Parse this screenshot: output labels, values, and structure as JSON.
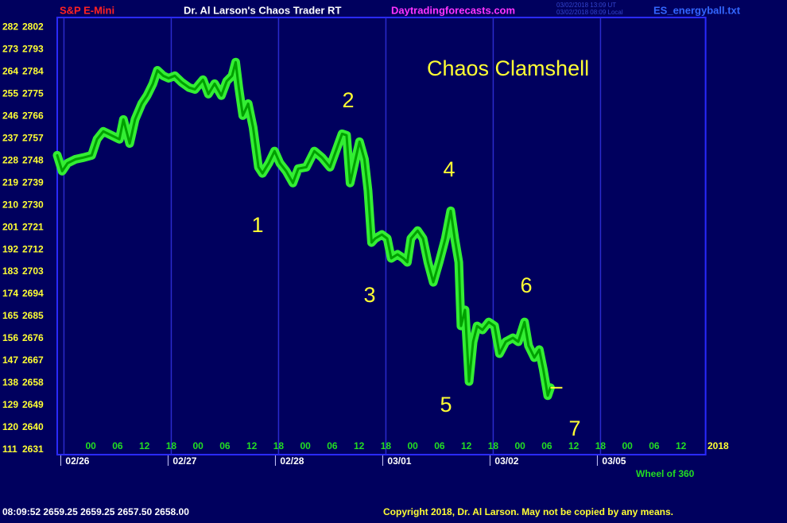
{
  "header": {
    "symbol": "S&P E-Mini",
    "title": "Dr. Al Larson's Chaos Trader RT",
    "site": "Daytradingforecasts.com",
    "timestamp_ut": "03/02/2018 13:09 UT",
    "timestamp_local": "03/02/2018 08:09 Local",
    "file": "ES_energyball.txt"
  },
  "chart_data": {
    "type": "line",
    "annotation_title": "Chaos Clamshell",
    "annotations": [
      "1",
      "2",
      "3",
      "4",
      "5",
      "6",
      "7"
    ],
    "x": [
      -7.5,
      -6.4,
      -5.2,
      -3.4,
      -1.6,
      0.2,
      1.4,
      2.8,
      4.6,
      6.4,
      7.3,
      8.7,
      9.9,
      11.4,
      12.6,
      13.9,
      14.9,
      16.2,
      17.4,
      18.8,
      20.3,
      22.0,
      23.3,
      25.1,
      26.3,
      27.7,
      29.2,
      30.4,
      31.6,
      32.4,
      33.1,
      34.0,
      35.2,
      36.3,
      37.5,
      38.4,
      39.8,
      41.1,
      42.3,
      43.7,
      45.2,
      46.4,
      48.2,
      50.0,
      51.7,
      53.5,
      54.8,
      56.2,
      57.2,
      58.0,
      59.2,
      60.1,
      61.2,
      62.0,
      62.8,
      63.6,
      65.1,
      66.3,
      67.2,
      68.6,
      69.9,
      70.8,
      71.6,
      73.1,
      74.3,
      75.4,
      76.6,
      77.9,
      79.3,
      80.5,
      81.4,
      82.3,
      82.8,
      83.7,
      84.6,
      85.5,
      86.4,
      87.6,
      89.0,
      90.3,
      91.4,
      92.8,
      94.4,
      95.6,
      97.0,
      97.9,
      99.2,
      100.3,
      101.2,
      102.2,
      102.8
    ],
    "series": [
      {
        "color": "#33ee33",
        "core_color": "#00a000",
        "marker_color": "#ffff33",
        "values": [
          2750.2,
          2743.8,
          2747.0,
          2748.6,
          2749.3,
          2750.2,
          2756.7,
          2759.9,
          2758.3,
          2756.7,
          2764.7,
          2755.0,
          2764.7,
          2771.1,
          2774.4,
          2779.2,
          2784.6,
          2782.4,
          2781.4,
          2782.4,
          2779.8,
          2777.6,
          2776.9,
          2780.8,
          2775.0,
          2779.2,
          2774.4,
          2780.2,
          2782.4,
          2787.9,
          2777.6,
          2766.3,
          2771.1,
          2761.5,
          2745.4,
          2742.9,
          2747.0,
          2751.9,
          2747.0,
          2743.8,
          2739.0,
          2744.8,
          2745.4,
          2751.9,
          2749.3,
          2745.4,
          2751.9,
          2758.9,
          2758.3,
          2739.0,
          2748.6,
          2755.7,
          2748.6,
          2735.8,
          2714.9,
          2716.5,
          2718.1,
          2716.5,
          2708.5,
          2710.1,
          2708.5,
          2706.9,
          2716.5,
          2719.7,
          2716.5,
          2706.9,
          2698.8,
          2706.9,
          2716.5,
          2727.7,
          2716.5,
          2706.9,
          2681.1,
          2687.6,
          2658.6,
          2674.7,
          2681.1,
          2679.5,
          2682.7,
          2681.1,
          2669.9,
          2674.7,
          2676.3,
          2674.7,
          2682.7,
          2673.1,
          2668.3,
          2671.5,
          2663.5,
          2652.9,
          2656.1
        ]
      }
    ],
    "xlim": [
      -7.5,
      137.5
    ],
    "xticks": [
      {
        "value": 0,
        "label": "00"
      },
      {
        "value": 6,
        "label": "06"
      },
      {
        "value": 12,
        "label": "12"
      },
      {
        "value": 18,
        "label": "18"
      },
      {
        "value": 24,
        "label": "00"
      },
      {
        "value": 30,
        "label": "06"
      },
      {
        "value": 36,
        "label": "12"
      },
      {
        "value": 42,
        "label": "18"
      },
      {
        "value": 48,
        "label": "00"
      },
      {
        "value": 54,
        "label": "06"
      },
      {
        "value": 60,
        "label": "12"
      },
      {
        "value": 66,
        "label": "18"
      },
      {
        "value": 72,
        "label": "00"
      },
      {
        "value": 78,
        "label": "06"
      },
      {
        "value": 84,
        "label": "12"
      },
      {
        "value": 90,
        "label": "18"
      },
      {
        "value": 96,
        "label": "00"
      },
      {
        "value": 102,
        "label": "06"
      },
      {
        "value": 108,
        "label": "12"
      },
      {
        "value": 114,
        "label": "18"
      },
      {
        "value": 120,
        "label": "00"
      },
      {
        "value": 126,
        "label": "06"
      },
      {
        "value": 132,
        "label": "12"
      }
    ],
    "date_ticks": [
      {
        "value": -6,
        "label": "02/26"
      },
      {
        "value": 18,
        "label": "02/27"
      },
      {
        "value": 42,
        "label": "02/28"
      },
      {
        "value": 66,
        "label": "03/01"
      },
      {
        "value": 90,
        "label": "03/02"
      },
      {
        "value": 114,
        "label": "03/05"
      }
    ],
    "year_label": "2018",
    "ylim": [
      2629,
      2806
    ],
    "yticks": [
      2631,
      2640,
      2649,
      2658,
      2667,
      2676,
      2685,
      2694,
      2703,
      2712,
      2721,
      2730,
      2739,
      2748,
      2757,
      2766,
      2775,
      2784,
      2793,
      2802
    ],
    "y2lim": [
      109,
      286
    ],
    "y2ticks": [
      111,
      120,
      129,
      138,
      147,
      156,
      165,
      174,
      183,
      192,
      201,
      210,
      219,
      228,
      237,
      246,
      255,
      264,
      273,
      282
    ],
    "y2_label": "Wheel of 360",
    "grid": true
  },
  "footer": {
    "quote": "08:09:52  2659.25 2659.25 2657.50 2658.00",
    "copyright": "Copyright 2018, Dr. Al Larson. May not be copied by any means."
  }
}
